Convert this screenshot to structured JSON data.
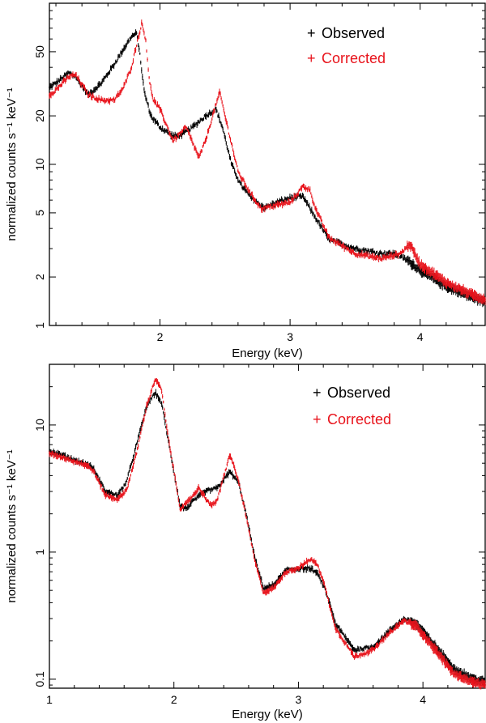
{
  "chart_data": [
    {
      "type": "line",
      "panel": "top",
      "xlabel": "Energy (keV)",
      "ylabel": "normalized counts s⁻¹ keV⁻¹",
      "xlim": [
        1.15,
        4.5
      ],
      "ylim": [
        1,
        100
      ],
      "yscale": "log",
      "xticks": [
        2,
        3,
        4
      ],
      "yticks": [
        1,
        2,
        5,
        10,
        20,
        50
      ],
      "legend_position": "top-right",
      "colors": {
        "Observed": "#000000",
        "Corrected": "#e8131b"
      },
      "series": [
        {
          "name": "Observed",
          "marker": "+",
          "x": [
            1.15,
            1.2,
            1.3,
            1.35,
            1.45,
            1.55,
            1.65,
            1.72,
            1.78,
            1.82,
            1.84,
            1.88,
            1.93,
            2.0,
            2.1,
            2.15,
            2.25,
            2.35,
            2.43,
            2.48,
            2.55,
            2.62,
            2.7,
            2.8,
            2.9,
            3.0,
            3.1,
            3.2,
            3.3,
            3.5,
            3.7,
            3.8,
            3.9,
            4.0,
            4.2,
            4.4,
            4.5
          ],
          "values": [
            30,
            32,
            37,
            35,
            27,
            32,
            42,
            52,
            62,
            65,
            52,
            28,
            20,
            17,
            15,
            15,
            17,
            20,
            22,
            17,
            10,
            7.5,
            6.2,
            5.4,
            5.8,
            6.2,
            6.3,
            4.6,
            3.4,
            3.0,
            2.8,
            2.8,
            2.55,
            2.2,
            1.75,
            1.5,
            1.4
          ]
        },
        {
          "name": "Corrected",
          "marker": "+",
          "x": [
            1.15,
            1.2,
            1.3,
            1.35,
            1.45,
            1.55,
            1.65,
            1.72,
            1.78,
            1.83,
            1.86,
            1.89,
            1.92,
            1.95,
            2.0,
            2.1,
            2.2,
            2.3,
            2.35,
            2.42,
            2.46,
            2.5,
            2.6,
            2.7,
            2.78,
            2.9,
            3.0,
            3.1,
            3.15,
            3.2,
            3.3,
            3.5,
            3.7,
            3.85,
            3.92,
            4.0,
            4.2,
            4.4,
            4.5
          ],
          "values": [
            27,
            29,
            35,
            36,
            27,
            25,
            25,
            30,
            40,
            60,
            75,
            60,
            32,
            25,
            22,
            14,
            17,
            11,
            14,
            22,
            28,
            20,
            9,
            6.5,
            5.3,
            5.6,
            5.8,
            7.3,
            7.0,
            5.2,
            3.5,
            2.8,
            2.6,
            2.8,
            3.2,
            2.4,
            1.85,
            1.55,
            1.45
          ]
        }
      ]
    },
    {
      "type": "line",
      "panel": "bottom",
      "xlabel": "Energy (keV)",
      "ylabel": "normalized counts s⁻¹ keV⁻¹",
      "xlim": [
        1.0,
        4.5
      ],
      "ylim": [
        0.085,
        30
      ],
      "yscale": "log",
      "xticks": [
        1,
        2,
        3,
        4
      ],
      "yticks": [
        0.1,
        1,
        10
      ],
      "legend_position": "top-right",
      "colors": {
        "Observed": "#000000",
        "Corrected": "#e8131b"
      },
      "series": [
        {
          "name": "Observed",
          "marker": "+",
          "x": [
            1.0,
            1.1,
            1.2,
            1.3,
            1.35,
            1.45,
            1.55,
            1.62,
            1.7,
            1.78,
            1.85,
            1.9,
            1.95,
            2.05,
            2.1,
            2.15,
            2.25,
            2.35,
            2.45,
            2.52,
            2.58,
            2.65,
            2.72,
            2.8,
            2.9,
            3.0,
            3.1,
            3.15,
            3.2,
            3.25,
            3.3,
            3.45,
            3.6,
            3.75,
            3.85,
            3.95,
            4.1,
            4.25,
            4.4,
            4.5
          ],
          "values": [
            6.2,
            5.8,
            5.3,
            4.9,
            4.6,
            3.0,
            2.8,
            3.6,
            7.0,
            14,
            18,
            15,
            8.0,
            2.3,
            2.2,
            2.5,
            3.0,
            3.2,
            4.3,
            3.5,
            2.0,
            0.9,
            0.52,
            0.55,
            0.72,
            0.74,
            0.74,
            0.68,
            0.55,
            0.4,
            0.27,
            0.17,
            0.18,
            0.25,
            0.3,
            0.27,
            0.18,
            0.12,
            0.1,
            0.095
          ]
        },
        {
          "name": "Corrected",
          "marker": "+",
          "x": [
            1.0,
            1.1,
            1.2,
            1.3,
            1.35,
            1.45,
            1.55,
            1.62,
            1.7,
            1.78,
            1.85,
            1.9,
            1.95,
            2.05,
            2.1,
            2.2,
            2.3,
            2.35,
            2.45,
            2.52,
            2.58,
            2.65,
            2.72,
            2.8,
            2.9,
            3.0,
            3.1,
            3.15,
            3.2,
            3.25,
            3.3,
            3.45,
            3.6,
            3.75,
            3.85,
            3.95,
            4.1,
            4.25,
            4.4,
            4.5
          ],
          "values": [
            6.0,
            5.6,
            5.2,
            4.8,
            4.4,
            2.8,
            2.6,
            3.1,
            6.0,
            14,
            23,
            19,
            8.5,
            2.2,
            2.4,
            3.2,
            2.3,
            2.6,
            5.9,
            3.6,
            1.9,
            0.85,
            0.48,
            0.52,
            0.7,
            0.75,
            0.88,
            0.8,
            0.6,
            0.38,
            0.25,
            0.15,
            0.17,
            0.24,
            0.29,
            0.26,
            0.17,
            0.11,
            0.095,
            0.09
          ]
        }
      ]
    }
  ]
}
